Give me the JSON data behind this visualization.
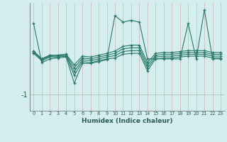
{
  "xlabel": "Humidex (Indice chaleur)",
  "bg_color": "#d4eeed",
  "grid_color_v": "#c8dede",
  "grid_color_h": "#c8c8c8",
  "line_color": "#2a7a6a",
  "x": [
    0,
    1,
    2,
    3,
    4,
    5,
    6,
    7,
    8,
    9,
    10,
    11,
    12,
    13,
    14,
    15,
    16,
    17,
    18,
    19,
    20,
    21,
    22,
    23
  ],
  "s1": [
    0.55,
    -0.3,
    -0.22,
    -0.2,
    -0.18,
    -0.75,
    -0.32,
    -0.32,
    -0.28,
    -0.24,
    0.72,
    0.58,
    0.62,
    0.58,
    -0.22,
    -0.22,
    -0.22,
    -0.22,
    -0.22,
    0.55,
    -0.22,
    0.85,
    -0.22,
    -0.22
  ],
  "s2": [
    -0.05,
    -0.22,
    -0.14,
    -0.14,
    -0.12,
    -0.35,
    -0.16,
    -0.18,
    -0.14,
    -0.1,
    -0.05,
    0.05,
    0.08,
    0.08,
    -0.3,
    -0.1,
    -0.08,
    -0.08,
    -0.06,
    -0.04,
    -0.04,
    -0.04,
    -0.08,
    -0.08
  ],
  "s3": [
    -0.05,
    -0.22,
    -0.14,
    -0.14,
    -0.12,
    -0.42,
    -0.2,
    -0.22,
    -0.18,
    -0.14,
    -0.1,
    0.0,
    0.02,
    0.02,
    -0.36,
    -0.14,
    -0.12,
    -0.12,
    -0.1,
    -0.08,
    -0.08,
    -0.08,
    -0.12,
    -0.12
  ],
  "s4": [
    -0.08,
    -0.24,
    -0.16,
    -0.16,
    -0.14,
    -0.5,
    -0.24,
    -0.26,
    -0.22,
    -0.18,
    -0.15,
    -0.06,
    -0.04,
    -0.04,
    -0.42,
    -0.18,
    -0.16,
    -0.16,
    -0.14,
    -0.12,
    -0.12,
    -0.12,
    -0.16,
    -0.16
  ],
  "s5": [
    -0.1,
    -0.26,
    -0.18,
    -0.18,
    -0.16,
    -0.58,
    -0.28,
    -0.3,
    -0.26,
    -0.22,
    -0.2,
    -0.12,
    -0.1,
    -0.1,
    -0.48,
    -0.22,
    -0.2,
    -0.2,
    -0.18,
    -0.16,
    -0.16,
    -0.16,
    -0.2,
    -0.2
  ],
  "ylim": [
    -1.35,
    1.0
  ],
  "xlim": [
    -0.5,
    23.5
  ],
  "ytick_val": -1,
  "ytick_label": "-1"
}
